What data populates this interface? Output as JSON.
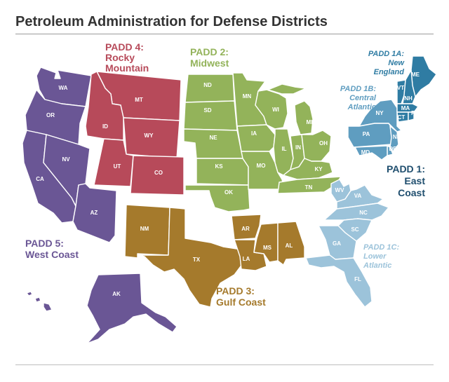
{
  "title": "Petroleum Administration for Defense Districts",
  "colors": {
    "padd1a": "#2f7ca3",
    "padd1b": "#5f9dc0",
    "padd1c": "#9cc3da",
    "padd1_label": "#1f4e6e",
    "padd2": "#93b35a",
    "padd3": "#a57a2c",
    "padd4": "#b74a5a",
    "padd5": "#6a5695"
  },
  "regions": {
    "padd1": [
      "PADD 1:",
      "East",
      "Coast"
    ],
    "padd1a": [
      "PADD 1A:",
      "New",
      "England"
    ],
    "padd1b": [
      "PADD 1B:",
      "Central",
      "Atlantic"
    ],
    "padd1c": [
      "PADD 1C:",
      "Lower",
      "Atlantic"
    ],
    "padd2": [
      "PADD 2:",
      "Midwest"
    ],
    "padd3": [
      "PADD 3:",
      "Gulf Coast"
    ],
    "padd4": [
      "PADD 4:",
      "Rocky",
      "Mountain"
    ],
    "padd5": [
      "PADD 5:",
      "West Coast"
    ]
  },
  "states": {
    "WA": "WA",
    "OR": "OR",
    "CA": "CA",
    "NV": "NV",
    "AZ": "AZ",
    "AK": "AK",
    "HI": "HI",
    "MT": "MT",
    "ID": "ID",
    "WY": "WY",
    "UT": "UT",
    "CO": "CO",
    "ND": "ND",
    "SD": "SD",
    "NE": "NE",
    "KS": "KS",
    "OK": "OK",
    "MN": "MN",
    "IA": "IA",
    "MO": "MO",
    "WI": "WI",
    "IL": "IL",
    "MI": "MI",
    "IN": "IN",
    "OH": "OH",
    "KY": "KY",
    "TN": "TN",
    "NM": "NM",
    "TX": "TX",
    "AR": "AR",
    "LA": "LA",
    "MS": "MS",
    "AL": "AL",
    "ME": "ME",
    "VT": "VT",
    "NH": "NH",
    "MA": "MA",
    "CT": "CT",
    "RI": "RI",
    "NY": "NY",
    "PA": "PA",
    "NJ": "NJ",
    "DE": "DE",
    "MD": "MD",
    "WV": "WV",
    "VA": "VA",
    "NC": "NC",
    "SC": "SC",
    "GA": "GA",
    "FL": "FL"
  }
}
